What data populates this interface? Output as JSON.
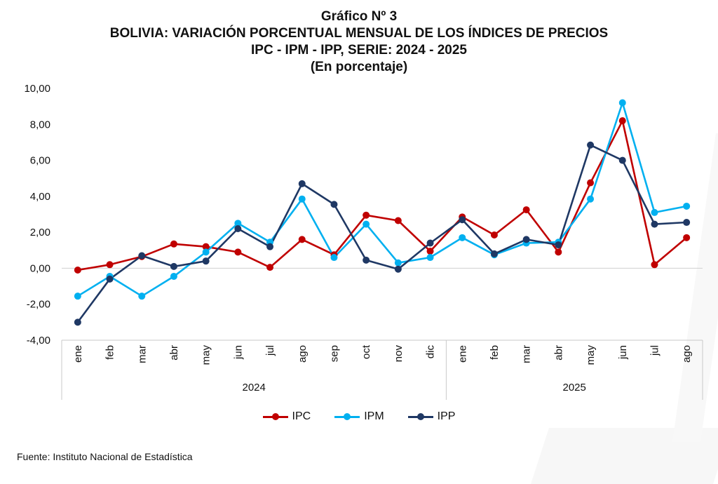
{
  "header": {
    "title": "Gráfico Nº 3",
    "subtitle1": "BOLIVIA: VARIACIÓN PORCENTUAL MENSUAL DE LOS ÍNDICES DE PRECIOS",
    "subtitle2": "IPC - IPM - IPP, SERIE: 2024 - 2025",
    "subtitle3": "(En porcentaje)"
  },
  "footer": {
    "source": "Fuente: Instituto Nacional de Estadística"
  },
  "chart_data": {
    "type": "line",
    "ylim": [
      -4,
      10
    ],
    "yticks": [
      "-4,00",
      "-2,00",
      "0,00",
      "2,00",
      "4,00",
      "6,00",
      "8,00",
      "10,00"
    ],
    "categories": [
      "ene",
      "feb",
      "mar",
      "abr",
      "may",
      "jun",
      "jul",
      "ago",
      "sep",
      "oct",
      "nov",
      "dic",
      "ene",
      "feb",
      "mar",
      "abr",
      "may",
      "jun",
      "jul",
      "ago"
    ],
    "groups": [
      {
        "label": "2024",
        "count": 12
      },
      {
        "label": "2025",
        "count": 8
      }
    ],
    "grid": "horizontal zero line only",
    "legend_position": "bottom",
    "series": [
      {
        "name": "IPC",
        "color": "#c00000",
        "values": [
          -0.1,
          0.2,
          0.65,
          1.35,
          1.2,
          0.9,
          0.05,
          1.6,
          0.75,
          2.95,
          2.65,
          0.95,
          2.85,
          1.85,
          3.25,
          0.9,
          4.75,
          8.2,
          0.2,
          1.7
        ]
      },
      {
        "name": "IPM",
        "color": "#00b0f0",
        "values": [
          -1.55,
          -0.45,
          -1.55,
          -0.45,
          0.9,
          2.5,
          1.45,
          3.85,
          0.6,
          2.45,
          0.3,
          0.6,
          1.7,
          0.75,
          1.4,
          1.45,
          3.85,
          9.2,
          3.1,
          3.45
        ]
      },
      {
        "name": "IPP",
        "color": "#1f3864",
        "values": [
          -3.0,
          -0.6,
          0.7,
          0.1,
          0.4,
          2.2,
          1.2,
          4.7,
          3.55,
          0.45,
          -0.05,
          1.4,
          2.7,
          0.8,
          1.6,
          1.3,
          6.85,
          6.0,
          2.45,
          2.55
        ]
      }
    ]
  }
}
